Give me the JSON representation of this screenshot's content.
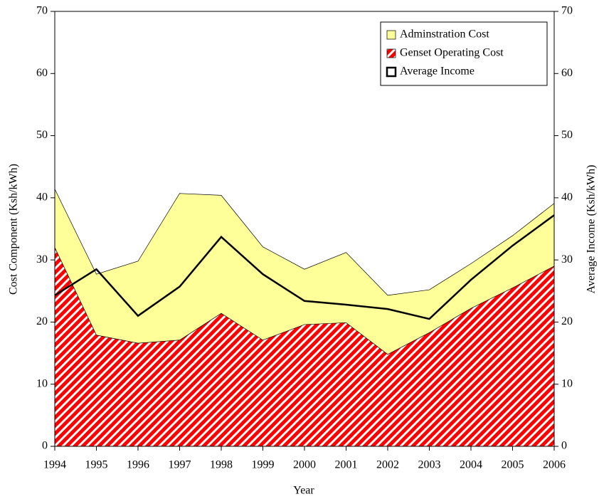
{
  "chart_data": {
    "type": "area",
    "xlabel": "Year",
    "ylabel": "Cost Component (Ksh/kWh)",
    "y2label": "Average Income (Ksh/kWh)",
    "x": [
      1994,
      1995,
      1996,
      1997,
      1998,
      1999,
      2000,
      2001,
      2002,
      2003,
      2004,
      2005,
      2006
    ],
    "xlim": [
      1994,
      2006
    ],
    "xticks": [
      1994,
      1995,
      1996,
      1997,
      1998,
      1999,
      2000,
      2001,
      2002,
      2003,
      2004,
      2005,
      2006
    ],
    "ylim": [
      0,
      70
    ],
    "yticks": [
      0,
      10,
      20,
      30,
      40,
      50,
      60,
      70
    ],
    "y2lim": [
      0,
      70
    ],
    "y2ticks": [
      0,
      10,
      20,
      30,
      40,
      50,
      60,
      70
    ],
    "stacked": true,
    "legend": "top-right",
    "series": [
      {
        "name": "Adminstration Cost",
        "kind": "area",
        "color": "#ffff99",
        "values": [
          9.4,
          9.8,
          13.2,
          23.6,
          19.0,
          15.0,
          8.9,
          11.3,
          9.5,
          6.9,
          7.2,
          8.4,
          10.1
        ]
      },
      {
        "name": "Genset Operating Cost",
        "kind": "area",
        "color": "#ff0000",
        "pattern": "hatch",
        "values": [
          32.0,
          17.9,
          16.6,
          17.1,
          21.4,
          17.1,
          19.6,
          19.9,
          14.8,
          18.3,
          22.2,
          25.5,
          29.0
        ]
      },
      {
        "name": "Average Income",
        "kind": "line",
        "color": "#000000",
        "axis": "y2",
        "values": [
          24.3,
          28.5,
          21.0,
          25.7,
          33.7,
          27.7,
          23.4,
          22.8,
          22.1,
          20.5,
          26.8,
          32.3,
          37.2
        ]
      }
    ]
  }
}
